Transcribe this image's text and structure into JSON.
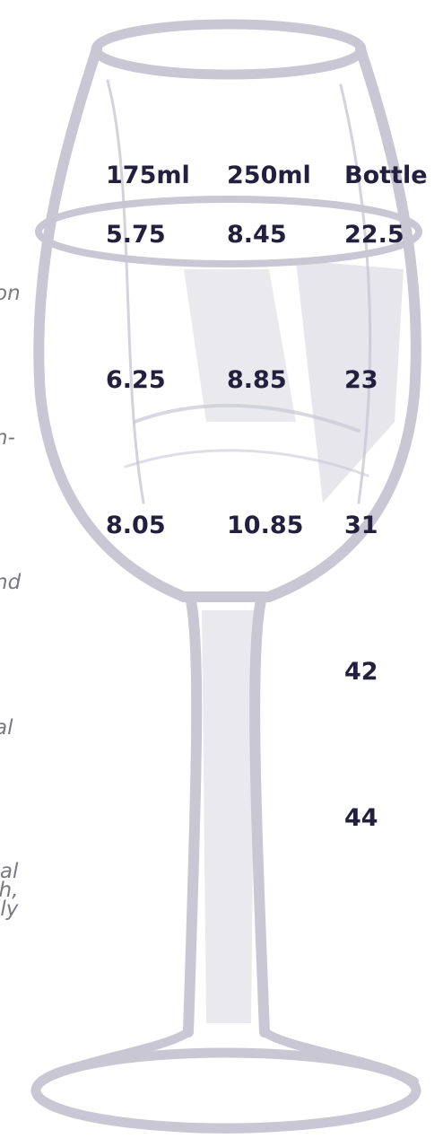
{
  "columns": [
    "175ml",
    "250ml",
    "Bottle"
  ],
  "rows": [
    {
      "glass_175": "5.75",
      "glass_250": "8.45",
      "bottle": "22.5"
    },
    {
      "glass_175": "6.25",
      "glass_250": "8.85",
      "bottle": "23"
    },
    {
      "glass_175": "8.05",
      "glass_250": "10.85",
      "bottle": "31"
    },
    {
      "glass_175": "",
      "glass_250": "",
      "bottle": "42"
    },
    {
      "glass_175": "",
      "glass_250": "",
      "bottle": "44"
    }
  ],
  "cut_off_text": [
    [
      "on"
    ],
    [
      "n-"
    ],
    [
      "nd"
    ],
    [
      "al"
    ],
    [
      "al",
      "h,",
      "lly"
    ]
  ],
  "colors": {
    "glass": "#c9c7d4",
    "glass_dark": "#aeabbe",
    "heading": "#23203f",
    "side_text": "#7a7880"
  }
}
